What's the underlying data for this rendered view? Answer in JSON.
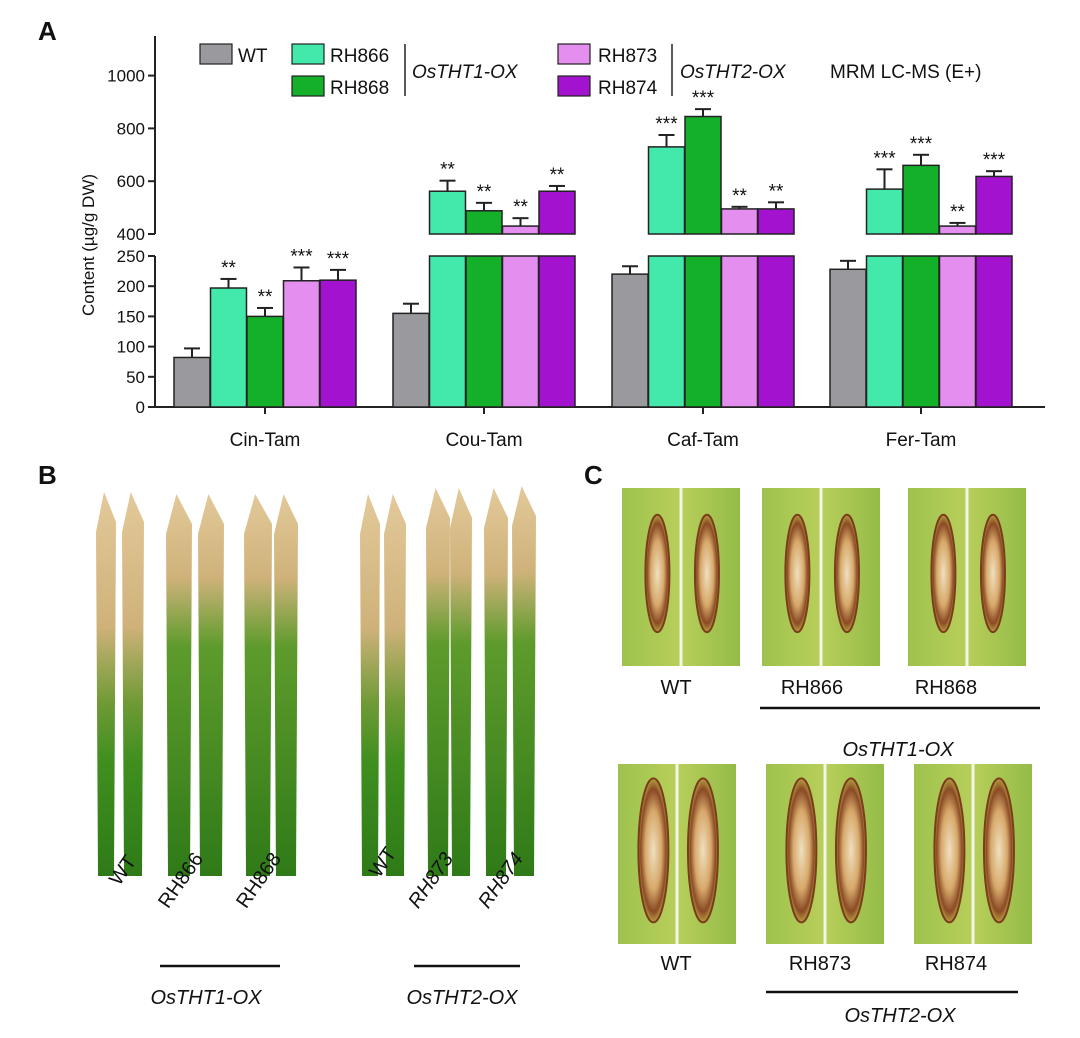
{
  "panels": {
    "a": "A",
    "b": "B",
    "c": "C"
  },
  "colors": {
    "WT": "#9a9a9e",
    "RH866": "#43e8ab",
    "RH868": "#14b02a",
    "RH873": "#e48ef0",
    "RH874": "#a313cf",
    "leaf_green": "#3f8f1f",
    "leaf_dry": "#d8b784",
    "lesion": "#8a4a25"
  },
  "chart_data": {
    "type": "bar",
    "title": "MRM LC-MS (E+)",
    "ylabel": "Content (µg/g DW)",
    "xlabel": "",
    "categories": [
      "Cin-Tam",
      "Cou-Tam",
      "Caf-Tam",
      "Fer-Tam"
    ],
    "y_broken_axis": {
      "lower_range": [
        0,
        250
      ],
      "upper_range": [
        400,
        1150
      ]
    },
    "lower_ticks": [
      "0",
      "50",
      "100",
      "150",
      "200",
      "250"
    ],
    "upper_ticks": [
      "400",
      "600",
      "800",
      "1000"
    ],
    "legend": {
      "entries": [
        "WT",
        "RH866",
        "RH868",
        "RH873",
        "RH874"
      ],
      "group1": "OsTHT1-OX",
      "group2": "OsTHT2-OX"
    },
    "series": [
      {
        "name": "WT",
        "values": [
          82,
          155,
          220,
          228
        ],
        "errors": [
          15,
          16,
          13,
          14
        ],
        "sig": [
          "",
          "",
          "",
          ""
        ]
      },
      {
        "name": "RH866",
        "values": [
          197,
          562,
          730,
          570
        ],
        "errors": [
          15,
          40,
          45,
          75
        ],
        "sig": [
          "**",
          "**",
          "***",
          "***"
        ]
      },
      {
        "name": "RH868",
        "values": [
          150,
          488,
          845,
          660
        ],
        "errors": [
          14,
          30,
          28,
          40
        ],
        "sig": [
          "**",
          "**",
          "***",
          "***"
        ]
      },
      {
        "name": "RH873",
        "values": [
          209,
          430,
          495,
          430
        ],
        "errors": [
          22,
          30,
          8,
          12
        ],
        "sig": [
          "***",
          "**",
          "**",
          "**"
        ]
      },
      {
        "name": "RH874",
        "values": [
          210,
          562,
          495,
          618
        ],
        "errors": [
          17,
          20,
          25,
          20
        ],
        "sig": [
          "***",
          "**",
          "**",
          "***"
        ]
      }
    ]
  },
  "panel_b": {
    "left_labels": [
      "WT",
      "RH866",
      "RH868"
    ],
    "left_group": "OsTHT1-OX",
    "right_labels": [
      "WT",
      "RH873",
      "RH874"
    ],
    "right_group": "OsTHT2-OX"
  },
  "panel_c": {
    "top_labels": [
      "WT",
      "RH866",
      "RH868"
    ],
    "top_group": "OsTHT1-OX",
    "bottom_labels": [
      "WT",
      "RH873",
      "RH874"
    ],
    "bottom_group": "OsTHT2-OX"
  }
}
